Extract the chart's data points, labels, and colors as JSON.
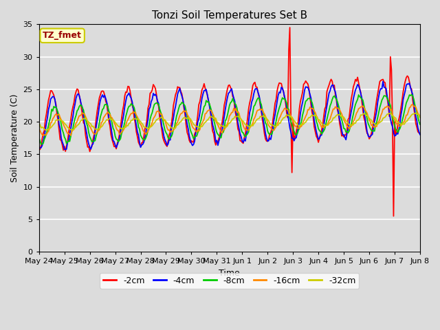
{
  "title": "Tonzi Soil Temperatures Set B",
  "xlabel": "Time",
  "ylabel": "Soil Temperature (C)",
  "ylim": [
    0,
    35
  ],
  "yticks": [
    0,
    5,
    10,
    15,
    20,
    25,
    30,
    35
  ],
  "legend_label": "TZ_fmet",
  "legend_box_color": "#ffffcc",
  "legend_box_edge": "#cccc00",
  "legend_text_color": "#990000",
  "series_labels": [
    "-2cm",
    "-4cm",
    "-8cm",
    "-16cm",
    "-32cm"
  ],
  "series_colors": [
    "#ff0000",
    "#0000ff",
    "#00cc00",
    "#ff8800",
    "#cccc00"
  ],
  "plot_bg_color": "#dcdcdc",
  "fig_bg_color": "#dcdcdc",
  "x_tick_labels": [
    "May 24",
    "May 25",
    "May 26",
    "May 27",
    "May 28",
    "May 29",
    "May 30",
    "May 31",
    "Jun 1",
    "Jun 2",
    "Jun 3",
    "Jun 4",
    "Jun 5",
    "Jun 6",
    "Jun 7",
    "Jun 8"
  ],
  "x_tick_positions": [
    0,
    24,
    48,
    72,
    96,
    120,
    144,
    168,
    192,
    216,
    240,
    264,
    288,
    312,
    336,
    360
  ]
}
